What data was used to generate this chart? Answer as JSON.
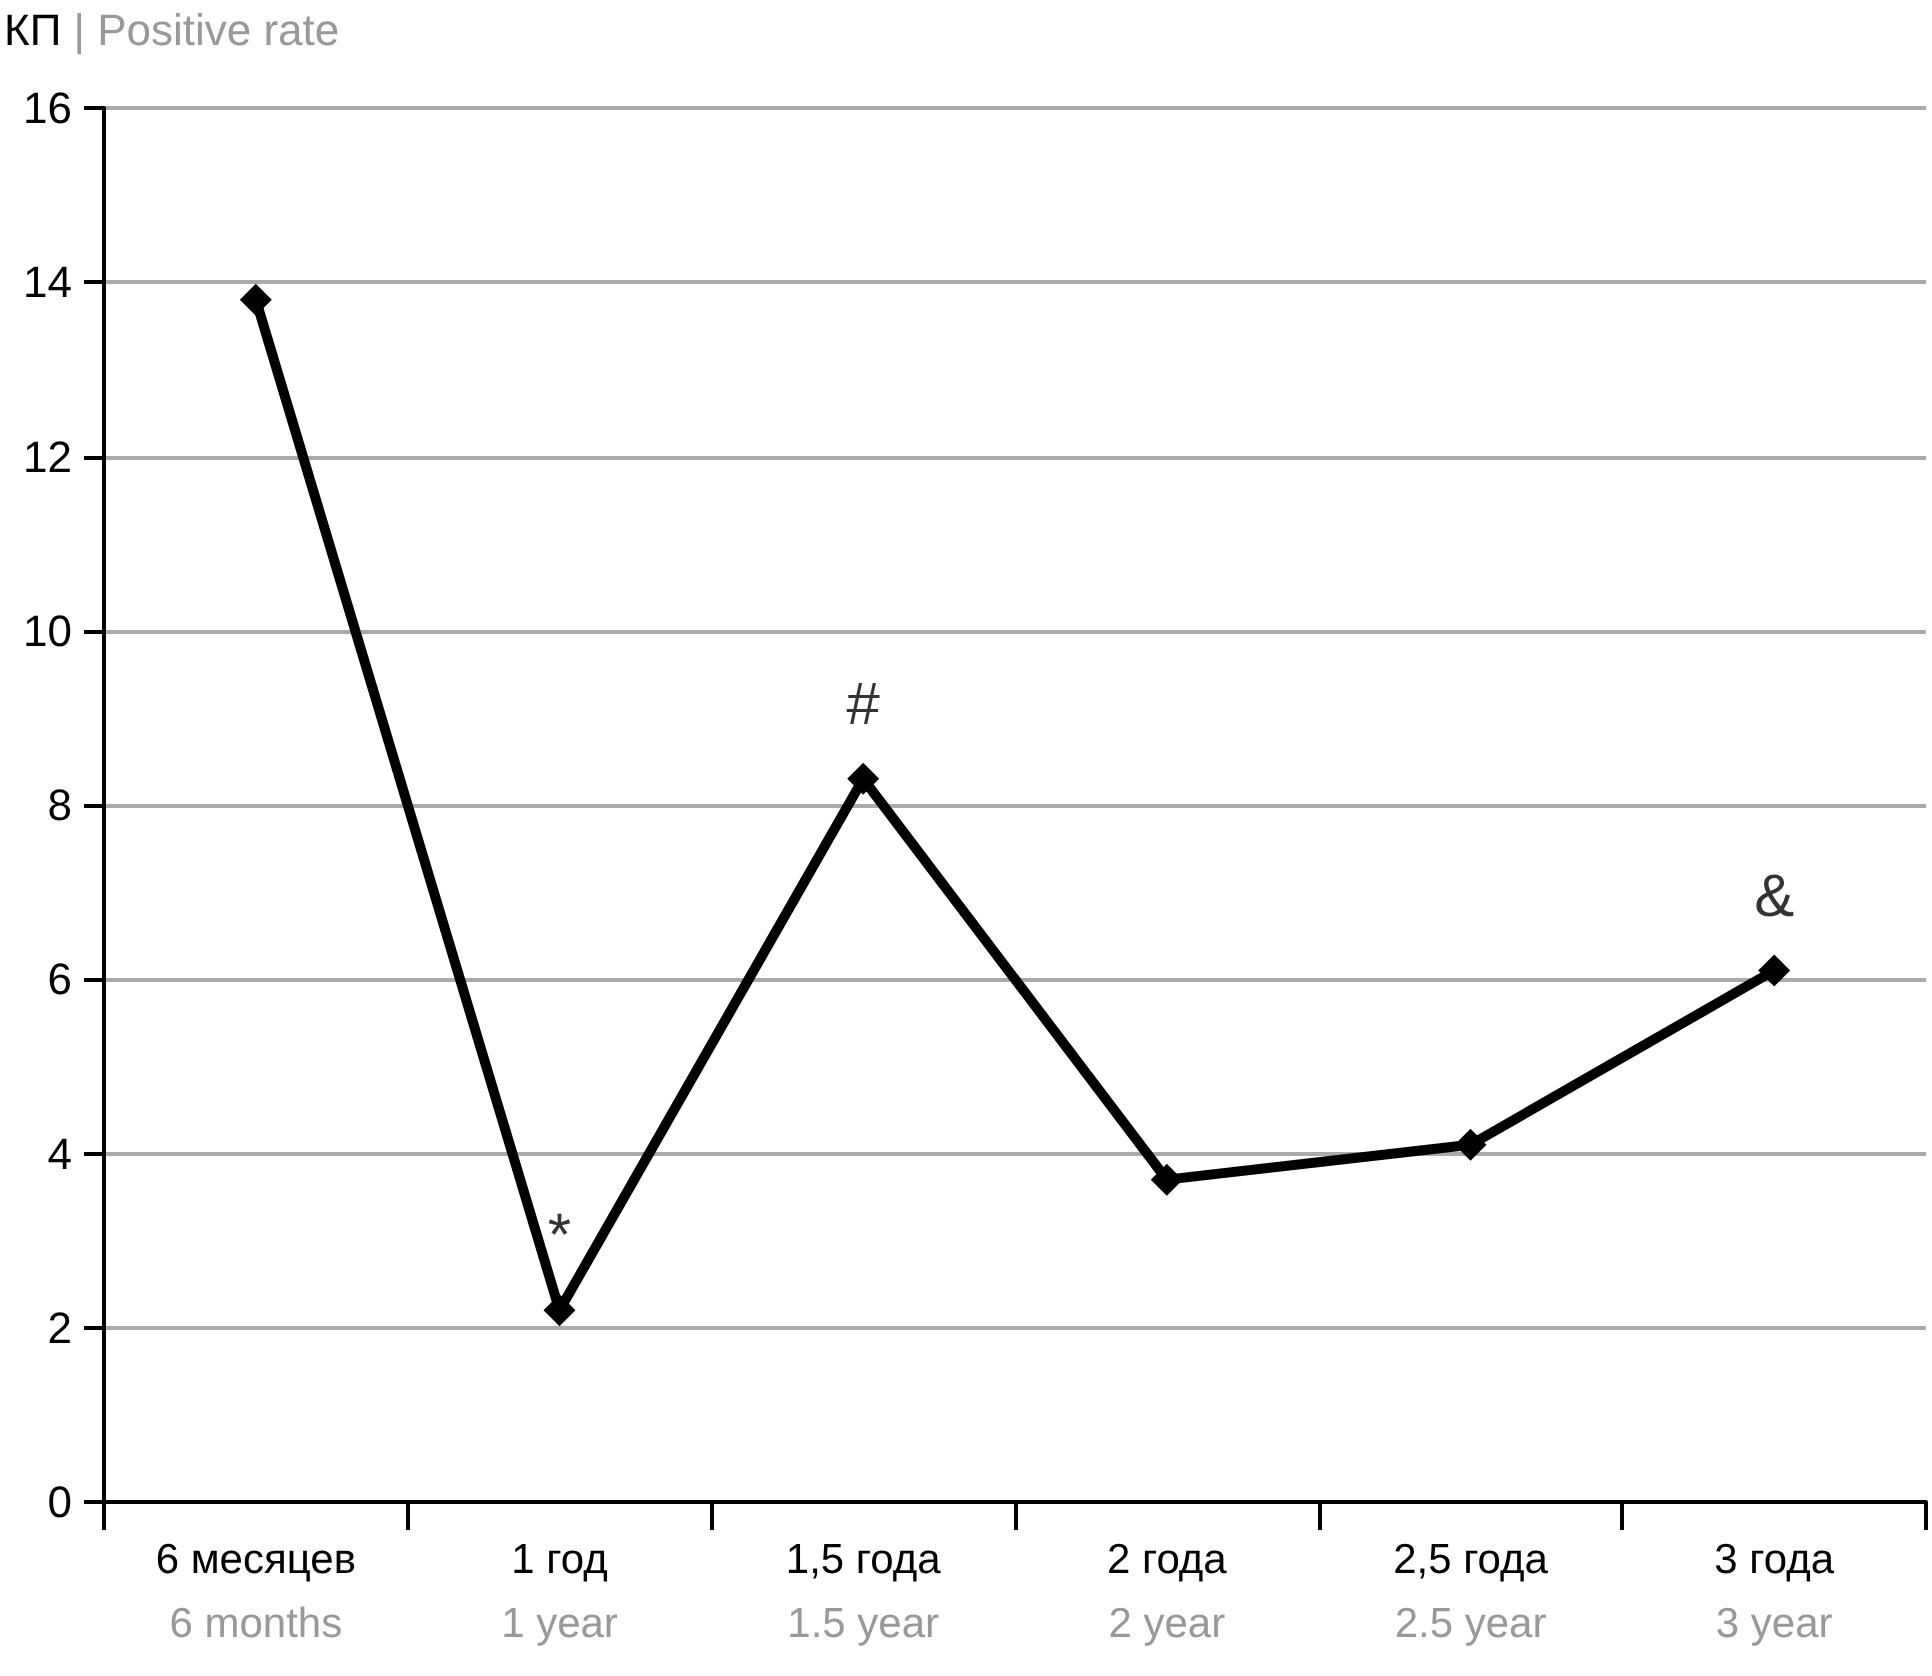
{
  "chart_data": {
    "type": "line",
    "ylabel": "КП | Positive rate",
    "categories": [
      "6 месяцев\n6 months",
      "1 год\n1 year",
      "1,5 года\n1.5 year",
      "2 года\n2 year",
      "2,5 года\n2.5 year",
      "3 года\n3 year"
    ],
    "series": [
      {
        "color": "#000000",
        "values": [
          13.8,
          2.2,
          8.3,
          3.7,
          4.1,
          6.1
        ]
      }
    ],
    "ylim": [
      0,
      16
    ],
    "yticks": [
      0,
      2,
      4,
      6,
      8,
      10,
      12,
      14,
      16
    ],
    "grid": "y",
    "marker": "diamond",
    "line_style": "solid",
    "annotations": [
      {
        "text": "*",
        "x": "1 год\n1 year",
        "y": 2.2
      },
      {
        "text": "#",
        "x": "1,5 года\n1.5 year",
        "y": 8.3
      },
      {
        "text": "&",
        "x": "3 года\n3 year",
        "y": 6.1
      }
    ]
  }
}
